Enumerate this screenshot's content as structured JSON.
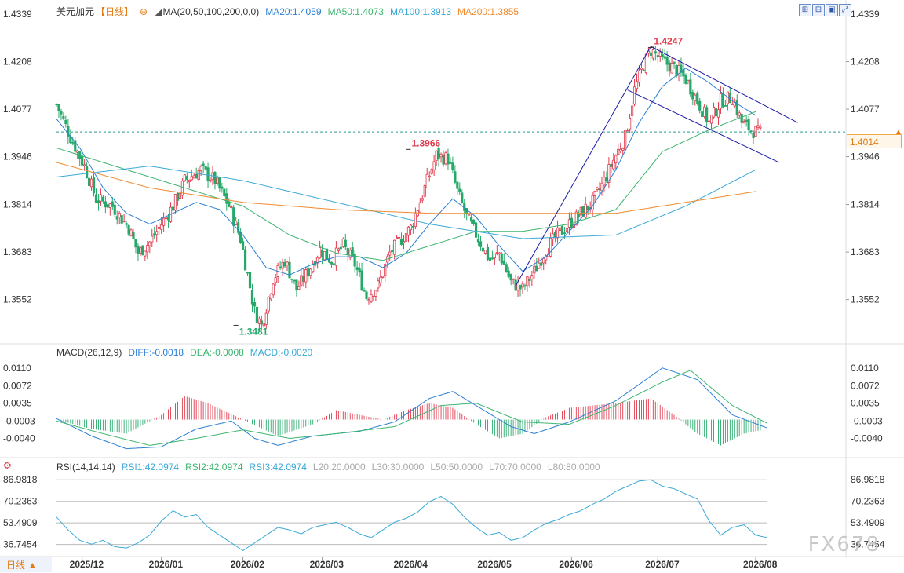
{
  "header": {
    "symbol": "美元加元",
    "period": "【日线】",
    "ma_label": "MA(20,50,100,200,0,0)",
    "ma20": "MA20:1.4059",
    "ma50": "MA50:1.4073",
    "ma100": "MA100:1.3913",
    "ma200": "MA200:1.3855"
  },
  "macd_header": {
    "label": "MACD(26,12,9)",
    "diff": "DIFF:-0.0018",
    "dea": "DEA:-0.0008",
    "macd": "MACD:-0.0020"
  },
  "rsi_header": {
    "label": "RSI(14,14,14)",
    "rsi1": "RSI1:42.0974",
    "rsi2": "RSI2:42.0974",
    "rsi3": "RSI3:42.0974",
    "l20": "L20:20.0000",
    "l30": "L30:30.0000",
    "l50": "L50:50.0000",
    "l70": "L70:70.0000",
    "l80": "L80:80.0000"
  },
  "current_price": "1.4014",
  "period_button": "日线 ▲",
  "watermark": "FX678",
  "toolbar_icons": [
    "zoom-in-icon",
    "zoom-out-icon",
    "image-icon",
    "expand-icon"
  ],
  "colors": {
    "up": "#e03a4c",
    "down": "#27a86a",
    "ma20": "#2a7fd4",
    "ma50": "#3cb56f",
    "ma100": "#3aa9d8",
    "ma200": "#f08a2e",
    "trendline": "#1a1aa8",
    "rsi": "#3aa9d8",
    "high_label": "#e03a4c",
    "low_label": "#27a86a"
  },
  "chart_data": [
    {
      "type": "candlestick",
      "title": "美元加元 日线",
      "x_tick_labels": [
        "2025/12",
        "2026/01",
        "2026/02",
        "2026/03",
        "2026/04",
        "2026/05",
        "2026/06",
        "2026/07",
        "2026/08"
      ],
      "y_tick_labels": [
        "1.4339",
        "1.4208",
        "1.4077",
        "1.3946",
        "1.3814",
        "1.3683",
        "1.3552"
      ],
      "ylim": [
        1.343,
        1.4339
      ],
      "annotations": [
        {
          "label": "1.4247",
          "kind": "high"
        },
        {
          "label": "1.3966",
          "kind": "high"
        },
        {
          "label": "1.3481",
          "kind": "low"
        }
      ],
      "current_price": 1.4014,
      "close_path": [
        [
          0,
          1.409
        ],
        [
          6,
          1.4
        ],
        [
          12,
          1.392
        ],
        [
          17,
          1.383
        ],
        [
          24,
          1.381
        ],
        [
          31,
          1.375
        ],
        [
          35,
          1.368
        ],
        [
          40,
          1.371
        ],
        [
          45,
          1.376
        ],
        [
          50,
          1.381
        ],
        [
          55,
          1.388
        ],
        [
          62,
          1.391
        ],
        [
          68,
          1.388
        ],
        [
          74,
          1.381
        ],
        [
          79,
          1.372
        ],
        [
          85,
          1.352
        ],
        [
          88,
          1.348
        ],
        [
          93,
          1.361
        ],
        [
          98,
          1.366
        ],
        [
          103,
          1.358
        ],
        [
          108,
          1.363
        ],
        [
          113,
          1.369
        ],
        [
          118,
          1.366
        ],
        [
          123,
          1.37
        ],
        [
          128,
          1.365
        ],
        [
          133,
          1.356
        ],
        [
          138,
          1.359
        ],
        [
          143,
          1.368
        ],
        [
          148,
          1.372
        ],
        [
          152,
          1.375
        ],
        [
          158,
          1.386
        ],
        [
          163,
          1.395
        ],
        [
          168,
          1.394
        ],
        [
          172,
          1.385
        ],
        [
          176,
          1.378
        ],
        [
          181,
          1.372
        ],
        [
          186,
          1.366
        ],
        [
          190,
          1.368
        ],
        [
          195,
          1.36
        ],
        [
          200,
          1.358
        ],
        [
          205,
          1.363
        ],
        [
          210,
          1.369
        ],
        [
          215,
          1.373
        ],
        [
          220,
          1.376
        ],
        [
          225,
          1.379
        ],
        [
          230,
          1.382
        ],
        [
          235,
          1.388
        ],
        [
          240,
          1.395
        ],
        [
          244,
          1.4
        ],
        [
          248,
          1.413
        ],
        [
          252,
          1.42
        ],
        [
          255,
          1.424
        ],
        [
          260,
          1.421
        ],
        [
          265,
          1.419
        ],
        [
          270,
          1.416
        ],
        [
          275,
          1.41
        ],
        [
          280,
          1.404
        ],
        [
          285,
          1.41
        ],
        [
          290,
          1.411
        ],
        [
          294,
          1.404
        ],
        [
          298,
          1.402
        ],
        [
          302,
          1.401
        ]
      ],
      "series": [
        {
          "name": "MA20",
          "values": [
            [
              0,
              1.405
            ],
            [
              10,
              1.397
            ],
            [
              20,
              1.386
            ],
            [
              30,
              1.379
            ],
            [
              40,
              1.376
            ],
            [
              50,
              1.379
            ],
            [
              60,
              1.382
            ],
            [
              70,
              1.38
            ],
            [
              80,
              1.373
            ],
            [
              90,
              1.364
            ],
            [
              100,
              1.362
            ],
            [
              110,
              1.365
            ],
            [
              120,
              1.367
            ],
            [
              130,
              1.367
            ],
            [
              140,
              1.364
            ],
            [
              150,
              1.368
            ],
            [
              160,
              1.376
            ],
            [
              170,
              1.383
            ],
            [
              180,
              1.378
            ],
            [
              190,
              1.37
            ],
            [
              200,
              1.363
            ],
            [
              210,
              1.367
            ],
            [
              220,
              1.374
            ],
            [
              230,
              1.381
            ],
            [
              240,
              1.391
            ],
            [
              250,
              1.404
            ],
            [
              260,
              1.414
            ],
            [
              270,
              1.419
            ],
            [
              280,
              1.415
            ],
            [
              290,
              1.41
            ],
            [
              300,
              1.406
            ]
          ]
        },
        {
          "name": "MA50",
          "values": [
            [
              0,
              1.397
            ],
            [
              20,
              1.393
            ],
            [
              40,
              1.389
            ],
            [
              60,
              1.385
            ],
            [
              80,
              1.381
            ],
            [
              100,
              1.373
            ],
            [
              120,
              1.368
            ],
            [
              140,
              1.366
            ],
            [
              160,
              1.37
            ],
            [
              180,
              1.374
            ],
            [
              200,
              1.374
            ],
            [
              220,
              1.376
            ],
            [
              240,
              1.38
            ],
            [
              260,
              1.396
            ],
            [
              280,
              1.402
            ],
            [
              300,
              1.407
            ]
          ]
        },
        {
          "name": "MA100",
          "values": [
            [
              0,
              1.389
            ],
            [
              40,
              1.392
            ],
            [
              80,
              1.388
            ],
            [
              120,
              1.382
            ],
            [
              160,
              1.376
            ],
            [
              200,
              1.372
            ],
            [
              240,
              1.373
            ],
            [
              270,
              1.381
            ],
            [
              300,
              1.391
            ]
          ]
        },
        {
          "name": "MA200",
          "values": [
            [
              0,
              1.393
            ],
            [
              40,
              1.386
            ],
            [
              80,
              1.382
            ],
            [
              120,
              1.38
            ],
            [
              160,
              1.379
            ],
            [
              200,
              1.379
            ],
            [
              240,
              1.379
            ],
            [
              270,
              1.382
            ],
            [
              300,
              1.385
            ]
          ]
        }
      ],
      "trendlines": [
        {
          "name": "rising-channel-line",
          "from": [
            197,
            1.359
          ],
          "to": [
            255,
            1.425
          ]
        },
        {
          "name": "falling-upper-line",
          "from": [
            255,
            1.425
          ],
          "to": [
            318,
            1.404
          ]
        },
        {
          "name": "falling-lower-line",
          "from": [
            245,
            1.413
          ],
          "to": [
            310,
            1.393
          ]
        }
      ]
    },
    {
      "type": "macd",
      "y_tick_labels": [
        "0.0110",
        "0.0072",
        "0.0035",
        "-0.0003",
        "-0.0040"
      ],
      "ylim": [
        -0.0076,
        0.0133
      ],
      "series": [
        {
          "name": "DIFF",
          "values": [
            [
              0,
              0.0002
            ],
            [
              15,
              -0.0035
            ],
            [
              30,
              -0.0062
            ],
            [
              45,
              -0.0058
            ],
            [
              60,
              -0.002
            ],
            [
              75,
              -0.0003
            ],
            [
              85,
              -0.004
            ],
            [
              95,
              -0.0055
            ],
            [
              110,
              -0.0035
            ],
            [
              130,
              -0.0025
            ],
            [
              145,
              -0.0005
            ],
            [
              160,
              0.0045
            ],
            [
              170,
              0.006
            ],
            [
              180,
              0.003
            ],
            [
              195,
              -0.0015
            ],
            [
              205,
              -0.003
            ],
            [
              220,
              -0.0005
            ],
            [
              240,
              0.004
            ],
            [
              260,
              0.011
            ],
            [
              275,
              0.0085
            ],
            [
              290,
              0.001
            ],
            [
              305,
              -0.0018
            ]
          ]
        },
        {
          "name": "DEA",
          "values": [
            [
              0,
              -0.0003
            ],
            [
              20,
              -0.003
            ],
            [
              40,
              -0.0055
            ],
            [
              60,
              -0.004
            ],
            [
              80,
              -0.0022
            ],
            [
              100,
              -0.004
            ],
            [
              120,
              -0.003
            ],
            [
              145,
              -0.0015
            ],
            [
              165,
              0.003
            ],
            [
              180,
              0.0035
            ],
            [
              200,
              -0.0005
            ],
            [
              220,
              -0.001
            ],
            [
              240,
              0.003
            ],
            [
              260,
              0.008
            ],
            [
              272,
              0.0105
            ],
            [
              290,
              0.003
            ],
            [
              305,
              -0.0008
            ]
          ]
        },
        {
          "name": "MACD",
          "values": [
            [
              0,
              0.0
            ],
            [
              15,
              -0.002
            ],
            [
              30,
              -0.003
            ],
            [
              45,
              0.001
            ],
            [
              55,
              0.005
            ],
            [
              65,
              0.0035
            ],
            [
              80,
              0.0
            ],
            [
              95,
              -0.0035
            ],
            [
              110,
              -0.001
            ],
            [
              120,
              0.002
            ],
            [
              130,
              0.001
            ],
            [
              140,
              0.0
            ],
            [
              150,
              0.002
            ],
            [
              160,
              0.0035
            ],
            [
              170,
              0.0025
            ],
            [
              180,
              -0.001
            ],
            [
              190,
              -0.004
            ],
            [
              200,
              -0.003
            ],
            [
              210,
              0.0005
            ],
            [
              220,
              0.0025
            ],
            [
              240,
              0.0035
            ],
            [
              255,
              0.0045
            ],
            [
              265,
              0.001
            ],
            [
              275,
              -0.003
            ],
            [
              285,
              -0.0055
            ],
            [
              295,
              -0.003
            ],
            [
              305,
              -0.002
            ]
          ]
        }
      ]
    },
    {
      "type": "rsi",
      "y_tick_labels": [
        "86.9818",
        "70.2363",
        "53.4909",
        "36.7454"
      ],
      "ylim": [
        28,
        92
      ],
      "series": [
        {
          "name": "RSI1",
          "values": [
            [
              0,
              58
            ],
            [
              5,
              48
            ],
            [
              10,
              40
            ],
            [
              15,
              37
            ],
            [
              20,
              40
            ],
            [
              25,
              35
            ],
            [
              30,
              34
            ],
            [
              35,
              38
            ],
            [
              40,
              44
            ],
            [
              45,
              55
            ],
            [
              50,
              63
            ],
            [
              55,
              58
            ],
            [
              60,
              60
            ],
            [
              65,
              50
            ],
            [
              70,
              44
            ],
            [
              75,
              38
            ],
            [
              80,
              32
            ],
            [
              85,
              38
            ],
            [
              90,
              44
            ],
            [
              95,
              50
            ],
            [
              100,
              48
            ],
            [
              105,
              45
            ],
            [
              110,
              50
            ],
            [
              115,
              52
            ],
            [
              120,
              54
            ],
            [
              125,
              50
            ],
            [
              130,
              45
            ],
            [
              135,
              42
            ],
            [
              140,
              48
            ],
            [
              145,
              54
            ],
            [
              150,
              57
            ],
            [
              155,
              62
            ],
            [
              160,
              70
            ],
            [
              165,
              74
            ],
            [
              170,
              68
            ],
            [
              175,
              58
            ],
            [
              180,
              50
            ],
            [
              185,
              44
            ],
            [
              190,
              46
            ],
            [
              195,
              40
            ],
            [
              200,
              42
            ],
            [
              205,
              48
            ],
            [
              210,
              53
            ],
            [
              215,
              56
            ],
            [
              220,
              60
            ],
            [
              225,
              63
            ],
            [
              230,
              68
            ],
            [
              235,
              72
            ],
            [
              240,
              78
            ],
            [
              245,
              82
            ],
            [
              250,
              86
            ],
            [
              255,
              87
            ],
            [
              260,
              82
            ],
            [
              265,
              80
            ],
            [
              270,
              76
            ],
            [
              275,
              72
            ],
            [
              280,
              55
            ],
            [
              285,
              44
            ],
            [
              290,
              50
            ],
            [
              295,
              52
            ],
            [
              300,
              44
            ],
            [
              305,
              42
            ]
          ]
        }
      ]
    }
  ]
}
